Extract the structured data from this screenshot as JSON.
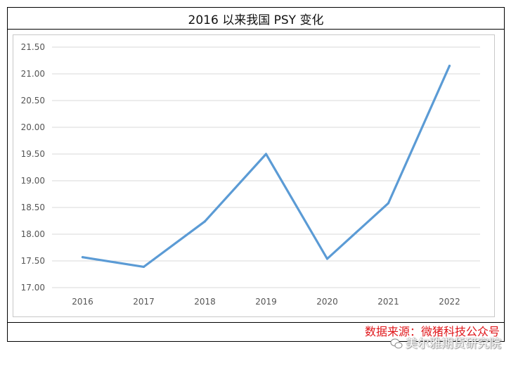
{
  "title": "2016 以来我国 PSY 变化",
  "source_text": "数据来源：微猪科技公众号",
  "watermark_text": "美尔雅期货研究院",
  "watermark_icon": "wechat-icon",
  "colors": {
    "line": "#5b9bd5",
    "source": "#e0161a",
    "grid": "#d9d9d9"
  },
  "chart_data": {
    "type": "line",
    "title": "2016 以来我国 PSY 变化",
    "categories": [
      "2016",
      "2017",
      "2018",
      "2019",
      "2020",
      "2021",
      "2022"
    ],
    "series": [
      {
        "values": [
          17.57,
          17.39,
          18.24,
          19.5,
          17.54,
          18.58,
          21.15
        ]
      }
    ],
    "ylim": [
      17.0,
      21.5
    ],
    "yticks": [
      "17.00",
      "17.50",
      "18.00",
      "18.50",
      "19.00",
      "19.50",
      "20.00",
      "20.50",
      "21.00",
      "21.50"
    ],
    "xlabel": "",
    "ylabel": "",
    "grid": true,
    "legend": "none"
  }
}
